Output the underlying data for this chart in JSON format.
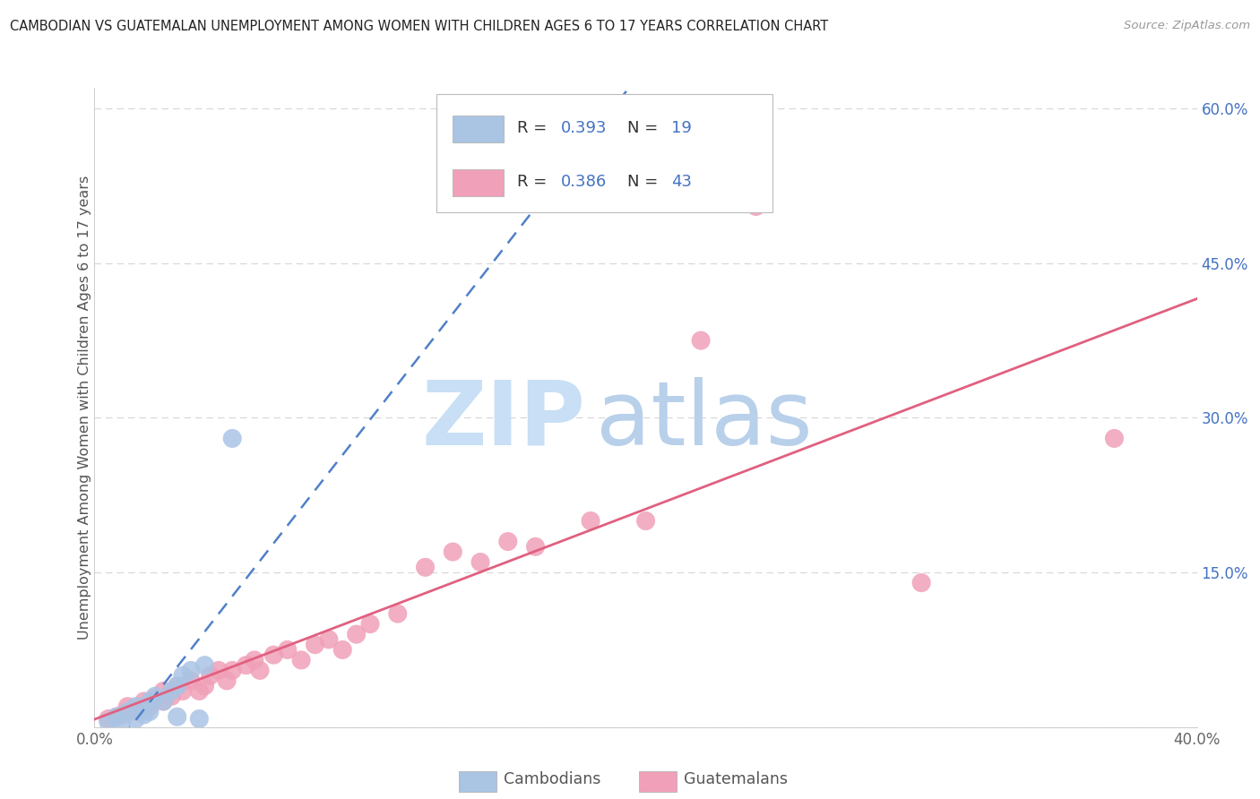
{
  "title": "CAMBODIAN VS GUATEMALAN UNEMPLOYMENT AMONG WOMEN WITH CHILDREN AGES 6 TO 17 YEARS CORRELATION CHART",
  "source": "Source: ZipAtlas.com",
  "ylabel": "Unemployment Among Women with Children Ages 6 to 17 years",
  "xlim": [
    0.0,
    0.4
  ],
  "ylim": [
    0.0,
    0.62
  ],
  "yticks": [
    0.0,
    0.15,
    0.3,
    0.45,
    0.6
  ],
  "xtick_vals": [
    0.0,
    0.4
  ],
  "legend_r1": "R = 0.393",
  "legend_n1": "N = 19",
  "legend_r2": "R = 0.386",
  "legend_n2": "N = 43",
  "cambodian_color": "#aac4e4",
  "guatemalan_color": "#f0a0b8",
  "cambodian_line_color": "#5080c8",
  "guatemalan_line_color": "#e06080",
  "watermark_zip_color": "#c8dff5",
  "watermark_atlas_color": "#b8d0ea",
  "background_color": "#ffffff",
  "grid_color": "#d8d8d8",
  "title_color": "#222222",
  "legend_value_color": "#4472c4",
  "legend_text_color": "#333333",
  "camb_x": [
    0.005,
    0.008,
    0.01,
    0.012,
    0.015,
    0.015,
    0.018,
    0.02,
    0.02,
    0.022,
    0.025,
    0.028,
    0.03,
    0.03,
    0.032,
    0.035,
    0.038,
    0.04,
    0.05
  ],
  "camb_y": [
    0.005,
    0.01,
    0.005,
    0.015,
    0.008,
    0.02,
    0.012,
    0.025,
    0.015,
    0.03,
    0.025,
    0.035,
    0.01,
    0.04,
    0.05,
    0.055,
    0.008,
    0.06,
    0.28
  ],
  "guat_x": [
    0.005,
    0.008,
    0.01,
    0.012,
    0.015,
    0.018,
    0.02,
    0.022,
    0.025,
    0.025,
    0.028,
    0.03,
    0.032,
    0.035,
    0.038,
    0.04,
    0.042,
    0.045,
    0.048,
    0.05,
    0.055,
    0.058,
    0.06,
    0.065,
    0.07,
    0.075,
    0.08,
    0.085,
    0.09,
    0.095,
    0.1,
    0.11,
    0.12,
    0.13,
    0.14,
    0.15,
    0.16,
    0.18,
    0.2,
    0.22,
    0.24,
    0.3,
    0.37
  ],
  "guat_y": [
    0.008,
    0.01,
    0.012,
    0.02,
    0.015,
    0.025,
    0.02,
    0.028,
    0.025,
    0.035,
    0.03,
    0.04,
    0.035,
    0.045,
    0.035,
    0.04,
    0.05,
    0.055,
    0.045,
    0.055,
    0.06,
    0.065,
    0.055,
    0.07,
    0.075,
    0.065,
    0.08,
    0.085,
    0.075,
    0.09,
    0.1,
    0.11,
    0.155,
    0.17,
    0.16,
    0.18,
    0.175,
    0.2,
    0.2,
    0.375,
    0.505,
    0.14,
    0.28
  ]
}
